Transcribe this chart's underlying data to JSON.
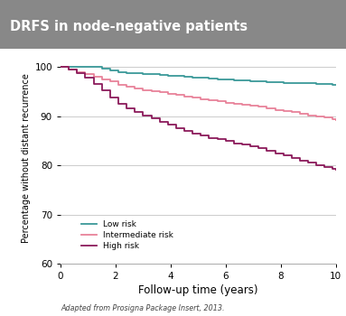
{
  "title": "DRFS in node-negative patients",
  "title_bg_color": "#888888",
  "title_text_color": "#ffffff",
  "xlabel": "Follow-up time (years)",
  "ylabel": "Percentage without distant recurrence",
  "footnote": "Adapted from Prosigna Package Insert, 2013.",
  "xlim": [
    0,
    10
  ],
  "ylim": [
    60,
    103
  ],
  "yticks": [
    60,
    70,
    80,
    90,
    100
  ],
  "xticks": [
    0,
    2,
    4,
    6,
    8,
    10
  ],
  "bg_color": "#ffffff",
  "plot_bg_color": "#ffffff",
  "grid_color": "#cccccc",
  "low_risk": {
    "color": "#3a9999",
    "label": "Low risk",
    "x": [
      0,
      0.3,
      0.6,
      0.9,
      1.2,
      1.5,
      1.8,
      2.1,
      2.4,
      2.7,
      3.0,
      3.3,
      3.6,
      3.9,
      4.2,
      4.5,
      4.8,
      5.1,
      5.4,
      5.7,
      6.0,
      6.3,
      6.6,
      6.9,
      7.2,
      7.5,
      7.8,
      8.1,
      8.4,
      8.7,
      9.0,
      9.3,
      9.6,
      9.9,
      10.0
    ],
    "y": [
      100,
      100,
      100,
      100,
      100,
      99.6,
      99.3,
      99.0,
      98.8,
      98.7,
      98.6,
      98.5,
      98.3,
      98.2,
      98.1,
      98.0,
      97.9,
      97.8,
      97.6,
      97.5,
      97.4,
      97.3,
      97.2,
      97.1,
      97.0,
      96.9,
      96.9,
      96.8,
      96.8,
      96.7,
      96.7,
      96.6,
      96.5,
      96.4,
      96.4
    ]
  },
  "intermediate_risk": {
    "color": "#e8829a",
    "label": "Intermediate risk",
    "x": [
      0,
      0.3,
      0.6,
      0.9,
      1.2,
      1.5,
      1.8,
      2.1,
      2.4,
      2.7,
      3.0,
      3.3,
      3.6,
      3.9,
      4.2,
      4.5,
      4.8,
      5.1,
      5.4,
      5.7,
      6.0,
      6.3,
      6.6,
      6.9,
      7.2,
      7.5,
      7.8,
      8.1,
      8.4,
      8.7,
      9.0,
      9.3,
      9.6,
      9.9,
      10.0
    ],
    "y": [
      100,
      99.5,
      99.0,
      98.5,
      98.0,
      97.5,
      97.0,
      96.3,
      96.0,
      95.6,
      95.3,
      95.1,
      94.8,
      94.5,
      94.3,
      94.0,
      93.8,
      93.5,
      93.2,
      93.0,
      92.7,
      92.5,
      92.3,
      92.1,
      91.9,
      91.6,
      91.3,
      91.0,
      90.8,
      90.5,
      90.2,
      90.0,
      89.7,
      89.3,
      89.2
    ]
  },
  "high_risk": {
    "color": "#8b1a5a",
    "label": "High risk",
    "x": [
      0,
      0.3,
      0.6,
      0.9,
      1.2,
      1.5,
      1.8,
      2.1,
      2.4,
      2.7,
      3.0,
      3.3,
      3.6,
      3.9,
      4.2,
      4.5,
      4.8,
      5.1,
      5.4,
      5.7,
      6.0,
      6.3,
      6.6,
      6.9,
      7.2,
      7.5,
      7.8,
      8.1,
      8.4,
      8.7,
      9.0,
      9.3,
      9.6,
      9.9,
      10.0
    ],
    "y": [
      100,
      99.5,
      98.8,
      97.8,
      96.5,
      95.2,
      93.8,
      92.5,
      91.5,
      90.8,
      90.2,
      89.5,
      88.8,
      88.2,
      87.5,
      87.0,
      86.5,
      86.0,
      85.6,
      85.3,
      85.0,
      84.5,
      84.2,
      83.8,
      83.5,
      83.0,
      82.5,
      82.0,
      81.5,
      81.0,
      80.5,
      80.0,
      79.7,
      79.3,
      79.2
    ]
  }
}
